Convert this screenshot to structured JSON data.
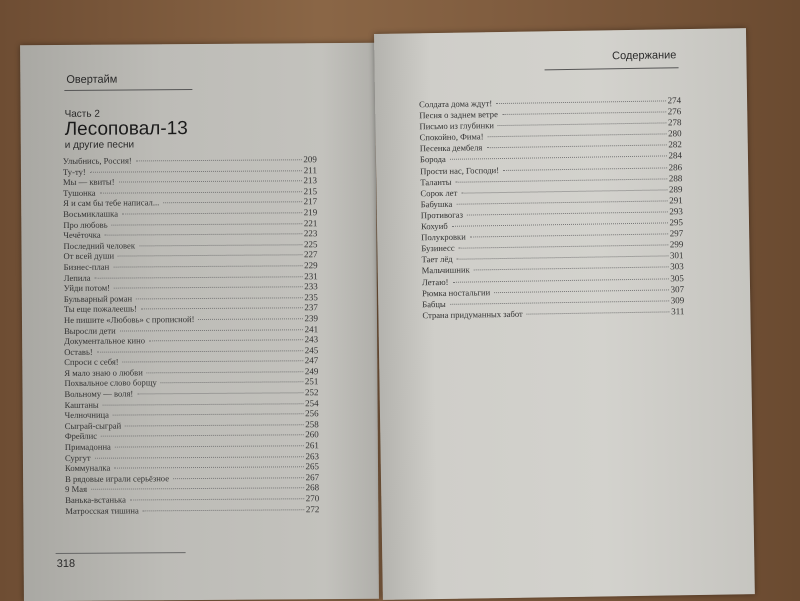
{
  "left_page": {
    "running_head": "Овертайм",
    "part_label": "Часть 2",
    "title": "Лесоповал-13",
    "subtitle": "и другие песни",
    "page_number": "318",
    "entries": [
      {
        "title": "Улыбнись, Россия!",
        "page": "209"
      },
      {
        "title": "Ту-ту!",
        "page": "211"
      },
      {
        "title": "Мы — квиты!",
        "page": "213"
      },
      {
        "title": "Тушонка",
        "page": "215"
      },
      {
        "title": "Я и сам бы тебе написал...",
        "page": "217"
      },
      {
        "title": "Восьмиклашка",
        "page": "219"
      },
      {
        "title": "Про любовь",
        "page": "221"
      },
      {
        "title": "Чечёточка",
        "page": "223"
      },
      {
        "title": "Последний человек",
        "page": "225"
      },
      {
        "title": "От всей души",
        "page": "227"
      },
      {
        "title": "Бизнес-план",
        "page": "229"
      },
      {
        "title": "Лепила",
        "page": "231"
      },
      {
        "title": "Уйди потом!",
        "page": "233"
      },
      {
        "title": "Бульварный роман",
        "page": "235"
      },
      {
        "title": "Ты еще пожалеешь!",
        "page": "237"
      },
      {
        "title": "Не пишите «Любовь» с прописной!",
        "page": "239"
      },
      {
        "title": "Выросли дети",
        "page": "241"
      },
      {
        "title": "Документальное кино",
        "page": "243"
      },
      {
        "title": "Оставь!",
        "page": "245"
      },
      {
        "title": "Спроси с себя!",
        "page": "247"
      },
      {
        "title": "Я мало знаю о любви",
        "page": "249"
      },
      {
        "title": "Похвальное слово борщу",
        "page": "251"
      },
      {
        "title": "Вольному — воля!",
        "page": "252"
      },
      {
        "title": "Каштаны",
        "page": "254"
      },
      {
        "title": "Челночница",
        "page": "256"
      },
      {
        "title": "Сыграй-сыграй",
        "page": "258"
      },
      {
        "title": "Фрейлис",
        "page": "260"
      },
      {
        "title": "Примадонна",
        "page": "261"
      },
      {
        "title": "Сургут",
        "page": "263"
      },
      {
        "title": "Коммуналка",
        "page": "265"
      },
      {
        "title": "В рядовые играли серьёзное",
        "page": "267"
      },
      {
        "title": "9 Мая",
        "page": "268"
      },
      {
        "title": "Ванька-встанька",
        "page": "270"
      },
      {
        "title": "Матросская тишина",
        "page": "272"
      }
    ]
  },
  "right_page": {
    "running_head": "Содержание",
    "entries": [
      {
        "title": "Солдата дома ждут!",
        "page": "274"
      },
      {
        "title": "Песня о заднем ветре",
        "page": "276"
      },
      {
        "title": "Письмо из глубинки",
        "page": "278"
      },
      {
        "title": "Спокойно, Фима!",
        "page": "280"
      },
      {
        "title": "Песенка дембеля",
        "page": "282"
      },
      {
        "title": "Борода",
        "page": "284"
      },
      {
        "title": "Прости нас, Господи!",
        "page": "286"
      },
      {
        "title": "Таланты",
        "page": "288"
      },
      {
        "title": "Сорок лет",
        "page": "289"
      },
      {
        "title": "Бабушка",
        "page": "291"
      },
      {
        "title": "Противогаз",
        "page": "293"
      },
      {
        "title": "Кохуиб",
        "page": "295"
      },
      {
        "title": "Полукровки",
        "page": "297"
      },
      {
        "title": "Бузинесс",
        "page": "299"
      },
      {
        "title": "Тает лёд",
        "page": "301"
      },
      {
        "title": "Мальчишник",
        "page": "303"
      },
      {
        "title": "Летаю!",
        "page": "305"
      },
      {
        "title": "Рюмка ностальгии",
        "page": "307"
      },
      {
        "title": "Бабцы",
        "page": "309"
      },
      {
        "title": "Страна придуманных забот",
        "page": "311"
      }
    ]
  }
}
